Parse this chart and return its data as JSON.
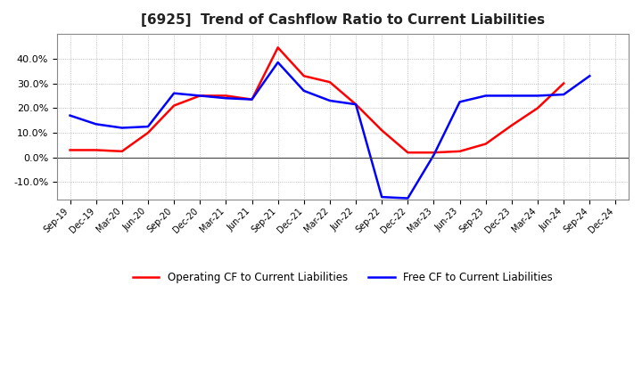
{
  "title": "[6925]  Trend of Cashflow Ratio to Current Liabilities",
  "x_labels": [
    "Sep-19",
    "Dec-19",
    "Mar-20",
    "Jun-20",
    "Sep-20",
    "Dec-20",
    "Mar-21",
    "Jun-21",
    "Sep-21",
    "Dec-21",
    "Mar-22",
    "Jun-22",
    "Sep-22",
    "Dec-22",
    "Mar-23",
    "Jun-23",
    "Sep-23",
    "Dec-23",
    "Mar-24",
    "Jun-24",
    "Sep-24",
    "Dec-24"
  ],
  "operating_cf": [
    3.0,
    3.0,
    2.5,
    10.0,
    21.0,
    25.0,
    25.0,
    23.5,
    44.5,
    33.0,
    30.5,
    21.5,
    11.0,
    2.0,
    2.0,
    2.5,
    5.5,
    13.0,
    20.0,
    30.0,
    null,
    null
  ],
  "free_cf": [
    17.0,
    13.5,
    12.0,
    12.5,
    26.0,
    25.0,
    24.0,
    23.5,
    38.5,
    27.0,
    23.0,
    21.5,
    -16.0,
    -16.5,
    1.0,
    22.5,
    25.0,
    25.0,
    25.0,
    25.5,
    33.0,
    null
  ],
  "ylim": [
    -17,
    50
  ],
  "yticks": [
    -10.0,
    0.0,
    10.0,
    20.0,
    30.0,
    40.0
  ],
  "operating_color": "#FF0000",
  "free_color": "#0000FF",
  "background_color": "#FFFFFF",
  "legend_operating": "Operating CF to Current Liabilities",
  "legend_free": "Free CF to Current Liabilities"
}
